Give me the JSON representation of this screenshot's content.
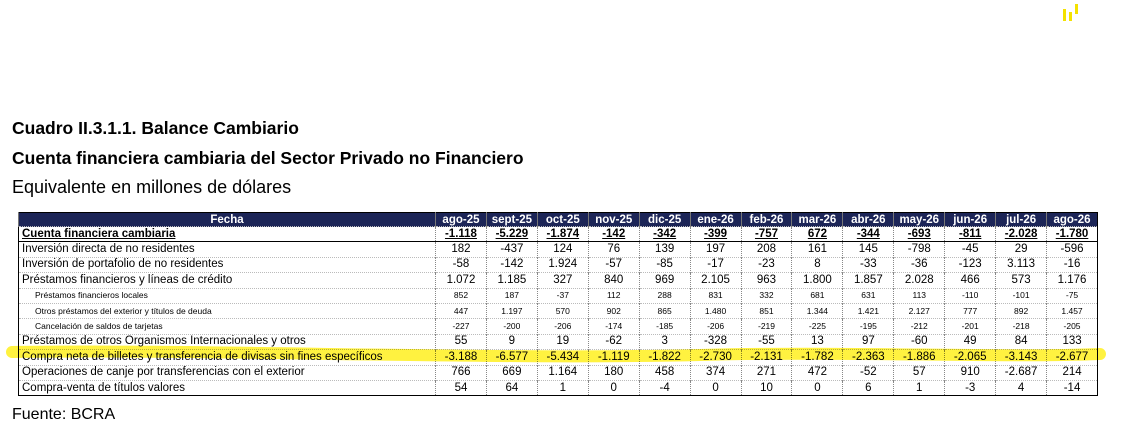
{
  "header": {
    "title": "Cuadro II.3.1.1. Balance Cambiario",
    "subtitle": "Cuenta financiera cambiaria del Sector Privado no Financiero",
    "units": "Equivalente en millones de dólares"
  },
  "table": {
    "columns": [
      "Fecha",
      "ago-25",
      "sept-25",
      "oct-25",
      "nov-25",
      "dic-25",
      "ene-26",
      "feb-26",
      "mar-26",
      "abr-26",
      "may-26",
      "jun-26",
      "jul-26",
      "ago-26"
    ],
    "rows": [
      [
        "Cuenta financiera cambiaria",
        "-1.118",
        "-5.229",
        "-1.874",
        "-142",
        "-342",
        "-399",
        "-757",
        "672",
        "-344",
        "-693",
        "-811",
        "-2.028",
        "-1.780"
      ],
      [
        "Inversión directa de no residentes",
        "182",
        "-437",
        "124",
        "76",
        "139",
        "197",
        "208",
        "161",
        "145",
        "-798",
        "-45",
        "29",
        "-596"
      ],
      [
        "Inversión de portafolio de no residentes",
        "-58",
        "-142",
        "1.924",
        "-57",
        "-85",
        "-17",
        "-23",
        "8",
        "-33",
        "-36",
        "-123",
        "3.113",
        "-16"
      ],
      [
        "Préstamos financieros y líneas de crédito",
        "1.072",
        "1.185",
        "327",
        "840",
        "969",
        "2.105",
        "963",
        "1.800",
        "1.857",
        "2.028",
        "466",
        "573",
        "1.176"
      ],
      [
        "Préstamos financieros locales",
        "852",
        "187",
        "-37",
        "112",
        "288",
        "831",
        "332",
        "681",
        "631",
        "113",
        "-110",
        "-101",
        "-75"
      ],
      [
        "Otros préstamos del exterior y títulos de deuda",
        "447",
        "1.197",
        "570",
        "902",
        "865",
        "1.480",
        "851",
        "1.344",
        "1.421",
        "2.127",
        "777",
        "892",
        "1.457"
      ],
      [
        "Cancelación de saldos de tarjetas",
        "-227",
        "-200",
        "-206",
        "-174",
        "-185",
        "-206",
        "-219",
        "-225",
        "-195",
        "-212",
        "-201",
        "-218",
        "-205"
      ],
      [
        "Préstamos de otros Organismos Internacionales y otros",
        "55",
        "9",
        "19",
        "-62",
        "3",
        "-328",
        "-55",
        "13",
        "97",
        "-60",
        "49",
        "84",
        "133"
      ],
      [
        "Compra neta de billetes y transferencia de divisas sin fines específicos",
        "-3.188",
        "-6.577",
        "-5.434",
        "-1.119",
        "-1.822",
        "-2.730",
        "-2.131",
        "-1.782",
        "-2.363",
        "-1.886",
        "-2.065",
        "-3.143",
        "-2.677"
      ],
      [
        "Operaciones de canje por transferencias con el exterior",
        "766",
        "669",
        "1.164",
        "180",
        "458",
        "374",
        "271",
        "472",
        "-52",
        "57",
        "910",
        "-2.687",
        "214"
      ],
      [
        "Compra-venta de títulos valores",
        "54",
        "64",
        "1",
        "0",
        "-4",
        "0",
        "10",
        "0",
        "6",
        "1",
        "-3",
        "4",
        "-14"
      ]
    ]
  },
  "source": "Fuente: BCRA"
}
